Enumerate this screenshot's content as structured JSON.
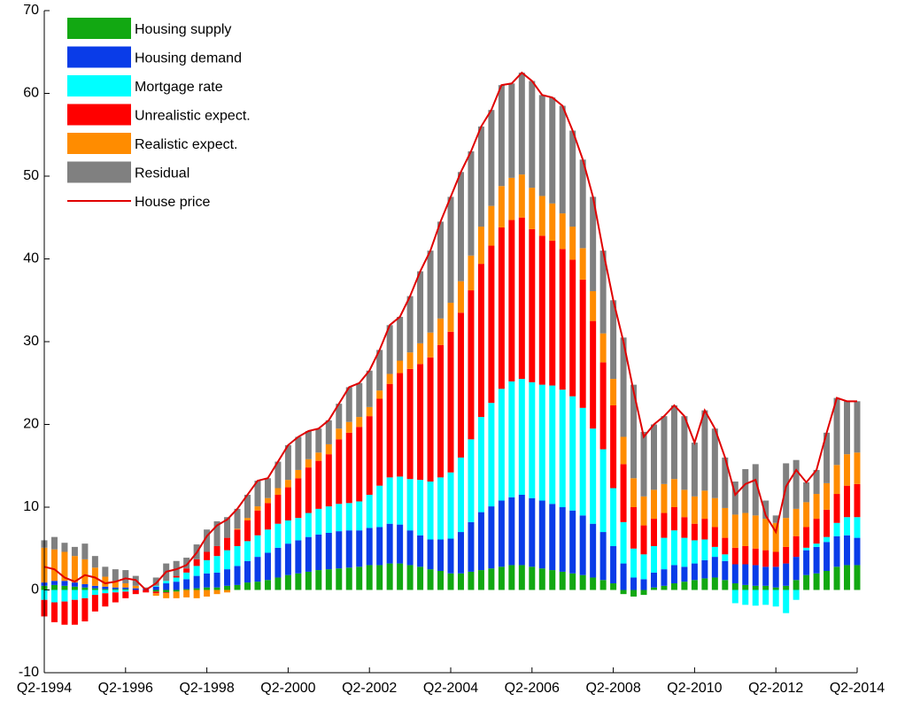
{
  "chart_data": {
    "type": "bar",
    "stacked": true,
    "legend": "upper left",
    "categories": [
      "Q2-1994",
      null,
      null,
      null,
      null,
      null,
      null,
      null,
      "Q2-1996",
      null,
      null,
      null,
      null,
      null,
      null,
      null,
      "Q2-1998",
      null,
      null,
      null,
      null,
      null,
      null,
      null,
      "Q2-2000",
      null,
      null,
      null,
      null,
      null,
      null,
      null,
      "Q2-2002",
      null,
      null,
      null,
      null,
      null,
      null,
      null,
      "Q2-2004",
      null,
      null,
      null,
      null,
      null,
      null,
      null,
      "Q2-2006",
      null,
      null,
      null,
      null,
      null,
      null,
      null,
      "Q2-2008",
      null,
      null,
      null,
      null,
      null,
      null,
      null,
      "Q2-2010",
      null,
      null,
      null,
      null,
      null,
      null,
      null,
      "Q2-2012",
      null,
      null,
      null,
      null,
      null,
      null,
      null,
      "Q2-2014"
    ],
    "ylim": [
      -10,
      70
    ],
    "yticks": [
      -10,
      0,
      10,
      20,
      30,
      40,
      50,
      60,
      70
    ],
    "series": [
      {
        "name": "Housing supply",
        "color": "#12a812",
        "values": [
          0.5,
          0.6,
          0.5,
          0.4,
          0.3,
          0.2,
          0.1,
          0.1,
          0.1,
          0.0,
          0.0,
          -0.2,
          -0.3,
          -0.2,
          0.1,
          0.2,
          0.3,
          0.3,
          0.5,
          0.6,
          0.9,
          1.0,
          1.2,
          1.5,
          1.8,
          2.0,
          2.2,
          2.4,
          2.5,
          2.6,
          2.7,
          2.8,
          3.0,
          3.0,
          3.2,
          3.2,
          3.0,
          2.8,
          2.5,
          2.3,
          2.0,
          2.0,
          2.2,
          2.4,
          2.6,
          2.8,
          3.0,
          3.0,
          2.8,
          2.6,
          2.4,
          2.2,
          2.0,
          1.8,
          1.5,
          1.2,
          0.8,
          -0.5,
          -0.8,
          -0.6,
          0.3,
          0.5,
          0.8,
          1.0,
          1.2,
          1.4,
          1.5,
          1.2,
          0.8,
          0.6,
          0.5,
          0.5,
          0.3,
          0.5,
          1.2,
          1.8,
          2.0,
          2.3,
          2.8,
          3.0,
          3.0
        ]
      },
      {
        "name": "Housing demand",
        "color": "#0a3ce8",
        "values": [
          0.4,
          0.5,
          0.6,
          0.5,
          0.4,
          0.3,
          0.3,
          0.2,
          0.2,
          0.2,
          0.1,
          0.4,
          0.8,
          1.0,
          1.2,
          1.5,
          1.7,
          1.8,
          2.0,
          2.3,
          2.6,
          3.0,
          3.3,
          3.6,
          3.8,
          4.0,
          4.2,
          4.3,
          4.4,
          4.5,
          4.5,
          4.4,
          4.5,
          4.6,
          4.8,
          4.7,
          4.2,
          3.8,
          3.6,
          3.8,
          4.2,
          5.0,
          6.0,
          7.0,
          7.5,
          8.0,
          8.2,
          8.5,
          8.3,
          8.2,
          8.0,
          7.8,
          7.6,
          7.2,
          6.5,
          5.8,
          4.5,
          3.2,
          1.5,
          1.3,
          1.8,
          2.0,
          2.2,
          1.8,
          2.0,
          2.2,
          2.5,
          2.3,
          2.3,
          2.5,
          2.5,
          2.3,
          2.5,
          2.7,
          2.8,
          3.0,
          3.2,
          3.5,
          3.7,
          3.6,
          3.3
        ]
      },
      {
        "name": "Mortgage rate",
        "color": "#00ffff",
        "values": [
          -1.2,
          -1.5,
          -1.4,
          -1.2,
          -1.0,
          -0.6,
          -0.4,
          -0.3,
          -0.2,
          0.0,
          0.0,
          0.1,
          0.3,
          0.5,
          0.8,
          1.2,
          1.6,
          2.0,
          2.3,
          2.4,
          2.4,
          2.6,
          2.8,
          2.9,
          2.8,
          2.7,
          2.9,
          3.1,
          3.2,
          3.3,
          3.3,
          3.5,
          4.0,
          5.0,
          5.6,
          5.8,
          6.2,
          6.7,
          7.0,
          7.5,
          8.0,
          9.0,
          10.0,
          11.5,
          12.5,
          13.5,
          14.0,
          14.0,
          14.0,
          14.0,
          14.3,
          14.2,
          13.8,
          13.0,
          11.5,
          10.0,
          7.0,
          5.0,
          3.5,
          3.0,
          3.2,
          3.8,
          4.2,
          3.5,
          2.8,
          2.5,
          1.2,
          0.8,
          -1.6,
          -1.8,
          -1.9,
          -1.8,
          -2.0,
          -2.8,
          -1.2,
          0.3,
          0.4,
          0.6,
          1.6,
          2.2,
          2.5
        ]
      },
      {
        "name": "Unrealistic expect.",
        "color": "#ff0000",
        "values": [
          -2.0,
          -2.4,
          -2.8,
          -3.0,
          -2.8,
          -2.0,
          -1.6,
          -1.2,
          -0.8,
          -0.5,
          -0.3,
          -0.2,
          -0.1,
          0.2,
          0.5,
          0.8,
          1.0,
          1.2,
          1.5,
          2.0,
          2.5,
          3.0,
          3.2,
          3.5,
          4.0,
          4.8,
          5.5,
          5.8,
          6.3,
          7.8,
          8.5,
          9.0,
          9.5,
          10.5,
          11.3,
          12.5,
          13.3,
          14.0,
          15.0,
          16.0,
          17.0,
          17.5,
          18.0,
          18.5,
          19.0,
          19.5,
          19.5,
          19.5,
          18.5,
          18.0,
          17.5,
          17.0,
          16.5,
          15.5,
          13.0,
          10.5,
          10.0,
          7.0,
          5.0,
          3.5,
          3.3,
          3.0,
          2.8,
          2.5,
          2.0,
          2.5,
          2.4,
          2.0,
          2.0,
          2.2,
          2.0,
          2.0,
          1.8,
          2.0,
          2.5,
          2.5,
          3.0,
          3.3,
          3.5,
          3.8,
          4.0
        ]
      },
      {
        "name": "Realistic expect.",
        "color": "#ff8c00",
        "values": [
          4.2,
          3.8,
          3.5,
          3.2,
          3.0,
          2.2,
          1.2,
          0.8,
          0.5,
          0.3,
          0.0,
          -0.3,
          -0.6,
          -0.8,
          -0.9,
          -1.0,
          -0.8,
          -0.5,
          -0.3,
          0.1,
          0.3,
          0.5,
          0.6,
          0.8,
          0.9,
          1.0,
          1.0,
          1.0,
          1.2,
          1.3,
          1.3,
          1.2,
          1.1,
          1.0,
          1.2,
          1.5,
          2.0,
          2.5,
          3.0,
          3.2,
          3.5,
          3.8,
          4.2,
          4.5,
          4.8,
          5.0,
          5.1,
          5.2,
          5.0,
          4.8,
          4.5,
          4.3,
          4.0,
          3.8,
          3.6,
          3.5,
          3.2,
          3.3,
          3.5,
          3.5,
          3.5,
          3.5,
          3.4,
          3.3,
          3.3,
          3.4,
          3.5,
          3.6,
          4.0,
          4.0,
          4.0,
          3.8,
          3.5,
          3.5,
          3.3,
          3.0,
          3.0,
          3.2,
          3.5,
          3.8,
          3.8
        ]
      },
      {
        "name": "Residual",
        "color": "#808080",
        "values": [
          0.9,
          1.5,
          1.1,
          1.1,
          1.9,
          1.4,
          1.2,
          1.4,
          1.6,
          1.2,
          0.2,
          1.0,
          2.1,
          1.8,
          1.3,
          1.8,
          2.7,
          3.0,
          2.5,
          2.4,
          2.8,
          3.1,
          2.4,
          3.2,
          4.2,
          4.0,
          3.4,
          2.9,
          2.9,
          3.0,
          4.2,
          4.1,
          4.4,
          4.9,
          5.9,
          5.3,
          6.8,
          8.7,
          9.9,
          11.7,
          12.8,
          13.2,
          12.6,
          12.1,
          11.6,
          12.2,
          11.4,
          12.3,
          12.9,
          12.2,
          12.8,
          13.0,
          11.6,
          10.7,
          11.4,
          10.0,
          9.5,
          12.0,
          11.3,
          7.8,
          7.9,
          8.2,
          8.9,
          8.9,
          6.5,
          9.7,
          8.4,
          6.1,
          4.0,
          5.3,
          6.2,
          2.2,
          0.9,
          6.6,
          5.9,
          2.4,
          2.9,
          6.1,
          8.1,
          6.4,
          6.2
        ]
      }
    ],
    "line": {
      "name": "House price",
      "color": "#e00000",
      "values": [
        2.8,
        2.5,
        1.5,
        1.0,
        1.8,
        1.5,
        0.8,
        1.0,
        1.4,
        1.2,
        0.0,
        0.8,
        2.2,
        2.5,
        3.0,
        4.5,
        6.5,
        7.8,
        8.5,
        9.8,
        11.5,
        13.2,
        13.5,
        15.5,
        17.5,
        18.5,
        19.2,
        19.5,
        20.5,
        22.5,
        24.5,
        25.0,
        26.5,
        29.0,
        32.0,
        33.0,
        35.5,
        38.5,
        41.0,
        44.5,
        47.5,
        50.5,
        53.0,
        56.0,
        58.0,
        61.0,
        61.2,
        62.5,
        61.5,
        59.8,
        59.5,
        58.5,
        55.5,
        52.0,
        47.5,
        41.0,
        35.0,
        30.0,
        24.0,
        18.5,
        20.0,
        21.0,
        22.3,
        21.0,
        17.8,
        21.7,
        19.5,
        16.0,
        11.5,
        12.8,
        13.3,
        9.0,
        7.0,
        12.5,
        14.5,
        13.0,
        14.5,
        19.0,
        23.2,
        22.8,
        22.8
      ]
    }
  }
}
